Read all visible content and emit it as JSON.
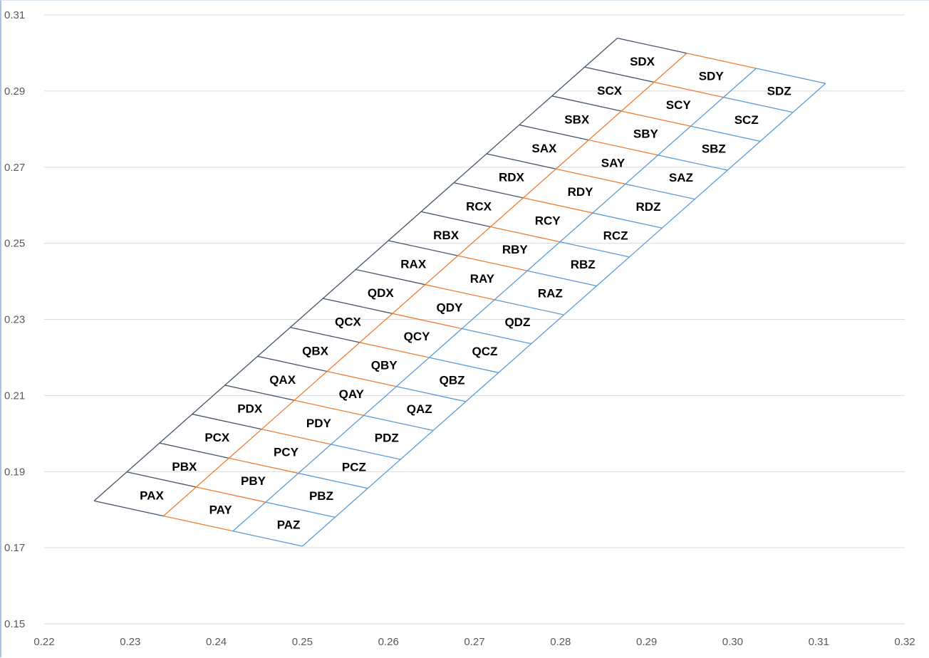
{
  "chart_data": {
    "type": "scatter",
    "title": "",
    "xlabel": "",
    "ylabel": "",
    "xlim": [
      0.22,
      0.32
    ],
    "ylim": [
      0.15,
      0.31
    ],
    "x_ticks": [
      "0.22",
      "0.23",
      "0.24",
      "0.25",
      "0.26",
      "0.27",
      "0.28",
      "0.29",
      "0.30",
      "0.31",
      "0.32"
    ],
    "y_ticks": [
      "0.15",
      "0.17",
      "0.19",
      "0.21",
      "0.23",
      "0.25",
      "0.27",
      "0.29",
      "0.31"
    ],
    "grid": "horizontal",
    "legend": "none",
    "colors": {
      "x_column": "#44546a",
      "y_column": "#ed7d31",
      "z_column": "#5b9bd5",
      "grid": "#d9d9d9"
    },
    "grid_corners": {
      "bottom_left": [
        0.2258,
        0.1823
      ],
      "bottom_right": [
        0.25,
        0.1704
      ],
      "step_along_strip": [
        0.0038,
        0.0076
      ]
    },
    "columns": [
      "X",
      "Y",
      "Z"
    ],
    "rows": [
      "PA",
      "PB",
      "PC",
      "PD",
      "QA",
      "QB",
      "QC",
      "QD",
      "RA",
      "RB",
      "RC",
      "RD",
      "SA",
      "SB",
      "SC",
      "SD"
    ],
    "cells": [
      {
        "label": "PAX",
        "x": 0.2325,
        "y": 0.1838
      },
      {
        "label": "PAY",
        "x": 0.2405,
        "y": 0.18
      },
      {
        "label": "PAZ",
        "x": 0.2484,
        "y": 0.1761
      },
      {
        "label": "PBX",
        "x": 0.2363,
        "y": 0.1914
      },
      {
        "label": "PBY",
        "x": 0.2443,
        "y": 0.1876
      },
      {
        "label": "PBZ",
        "x": 0.2522,
        "y": 0.1837
      },
      {
        "label": "PCX",
        "x": 0.2401,
        "y": 0.199
      },
      {
        "label": "PCY",
        "x": 0.2481,
        "y": 0.1952
      },
      {
        "label": "PCZ",
        "x": 0.256,
        "y": 0.1913
      },
      {
        "label": "PDX",
        "x": 0.2439,
        "y": 0.2066
      },
      {
        "label": "PDY",
        "x": 0.2519,
        "y": 0.2028
      },
      {
        "label": "PDZ",
        "x": 0.2598,
        "y": 0.1989
      },
      {
        "label": "QAX",
        "x": 0.2477,
        "y": 0.2142
      },
      {
        "label": "QAY",
        "x": 0.2557,
        "y": 0.2104
      },
      {
        "label": "QAZ",
        "x": 0.2636,
        "y": 0.2065
      },
      {
        "label": "QBX",
        "x": 0.2515,
        "y": 0.2218
      },
      {
        "label": "QBY",
        "x": 0.2595,
        "y": 0.218
      },
      {
        "label": "QBZ",
        "x": 0.2674,
        "y": 0.2141
      },
      {
        "label": "QCX",
        "x": 0.2553,
        "y": 0.2294
      },
      {
        "label": "QCY",
        "x": 0.2633,
        "y": 0.2256
      },
      {
        "label": "QCZ",
        "x": 0.2712,
        "y": 0.2217
      },
      {
        "label": "QDX",
        "x": 0.2591,
        "y": 0.237
      },
      {
        "label": "QDY",
        "x": 0.2671,
        "y": 0.2332
      },
      {
        "label": "QDZ",
        "x": 0.275,
        "y": 0.2293
      },
      {
        "label": "RAX",
        "x": 0.2629,
        "y": 0.2446
      },
      {
        "label": "RAY",
        "x": 0.2709,
        "y": 0.2408
      },
      {
        "label": "RAZ",
        "x": 0.2788,
        "y": 0.2369
      },
      {
        "label": "RBX",
        "x": 0.2667,
        "y": 0.2522
      },
      {
        "label": "RBY",
        "x": 0.2747,
        "y": 0.2484
      },
      {
        "label": "RBZ",
        "x": 0.2826,
        "y": 0.2445
      },
      {
        "label": "RCX",
        "x": 0.2705,
        "y": 0.2598
      },
      {
        "label": "RCY",
        "x": 0.2785,
        "y": 0.256
      },
      {
        "label": "RCZ",
        "x": 0.2864,
        "y": 0.2521
      },
      {
        "label": "RDX",
        "x": 0.2743,
        "y": 0.2674
      },
      {
        "label": "RDY",
        "x": 0.2823,
        "y": 0.2636
      },
      {
        "label": "RDZ",
        "x": 0.2902,
        "y": 0.2597
      },
      {
        "label": "SAX",
        "x": 0.2781,
        "y": 0.275
      },
      {
        "label": "SAY",
        "x": 0.2861,
        "y": 0.2712
      },
      {
        "label": "SAZ",
        "x": 0.294,
        "y": 0.2673
      },
      {
        "label": "SBX",
        "x": 0.2819,
        "y": 0.2826
      },
      {
        "label": "SBY",
        "x": 0.2899,
        "y": 0.2788
      },
      {
        "label": "SBZ",
        "x": 0.2978,
        "y": 0.2749
      },
      {
        "label": "SCX",
        "x": 0.2857,
        "y": 0.2902
      },
      {
        "label": "SCY",
        "x": 0.2937,
        "y": 0.2864
      },
      {
        "label": "SCZ",
        "x": 0.3016,
        "y": 0.2825
      },
      {
        "label": "SDX",
        "x": 0.2895,
        "y": 0.2978
      },
      {
        "label": "SDY",
        "x": 0.2975,
        "y": 0.294
      },
      {
        "label": "SDZ",
        "x": 0.3054,
        "y": 0.2901
      }
    ]
  }
}
